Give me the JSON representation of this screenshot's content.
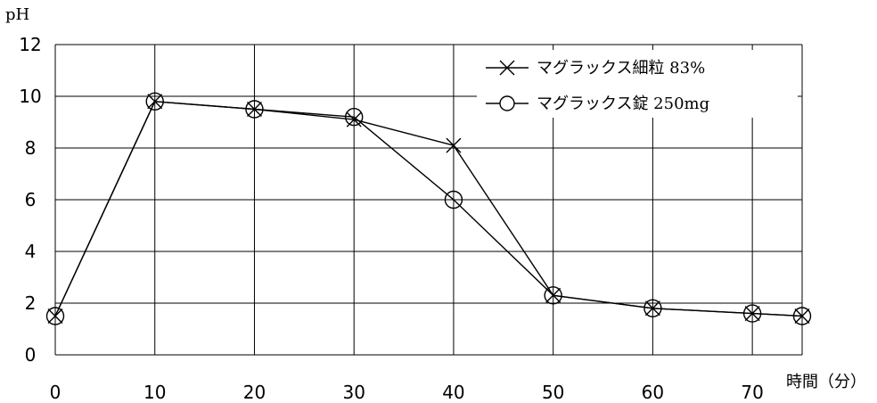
{
  "chart_data": {
    "type": "line",
    "title": "",
    "ylabel": "pH",
    "xlabel": "時間（分）",
    "x": [
      0,
      10,
      20,
      30,
      40,
      50,
      60,
      70,
      75
    ],
    "x_ticks": [
      0,
      10,
      20,
      30,
      40,
      50,
      60,
      70
    ],
    "y_ticks": [
      0,
      2,
      4,
      6,
      8,
      10,
      12
    ],
    "xlim": [
      0,
      75
    ],
    "ylim": [
      0,
      12
    ],
    "grid": true,
    "legend_position": "top-right",
    "series": [
      {
        "name": "マグラックス細粒 83%",
        "marker": "x",
        "values": [
          1.5,
          9.8,
          9.5,
          9.1,
          8.1,
          2.3,
          1.8,
          1.6,
          1.5
        ]
      },
      {
        "name": "マグラックス錠 250mg",
        "marker": "circle",
        "values": [
          1.5,
          9.8,
          9.5,
          9.2,
          6.0,
          2.3,
          1.8,
          1.6,
          1.5
        ]
      }
    ]
  }
}
